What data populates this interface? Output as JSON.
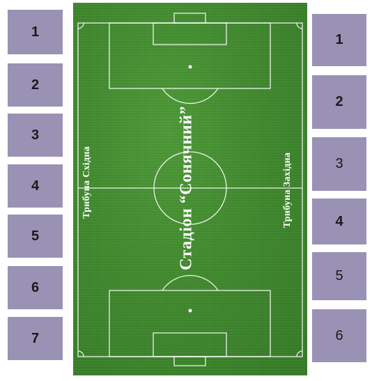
{
  "left_blocks": [
    "1",
    "2",
    "3",
    "4",
    "5",
    "6",
    "7"
  ],
  "right_blocks": [
    "1",
    "2",
    "3",
    "4",
    "5",
    "6"
  ],
  "pitch": {
    "stadium_name": "Стадіон “Сонячний”",
    "left_stand": "Трибуна Східна",
    "right_stand": "Трибуна Західна",
    "line_color": "#ffffff",
    "grass_color": "#3f8a2c"
  },
  "block_color": "#9a92b4"
}
